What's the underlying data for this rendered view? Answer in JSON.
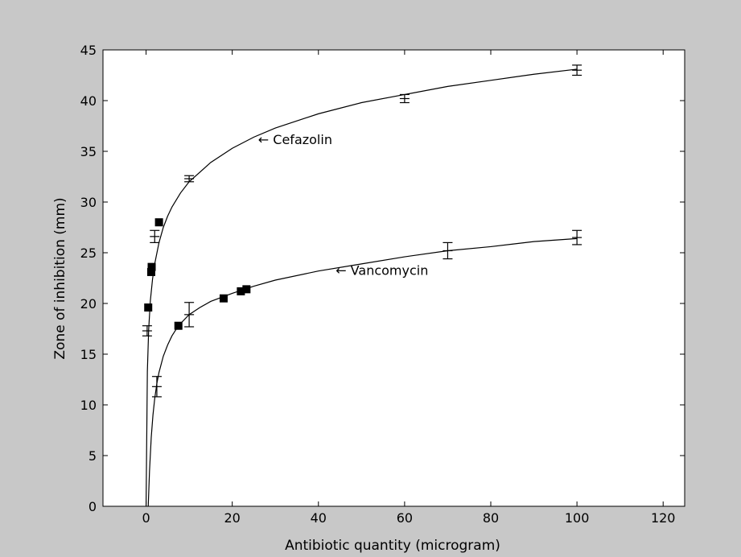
{
  "chart_data": {
    "type": "scatter",
    "title": "",
    "xlabel": "Antibiotic quantity (microgram)",
    "ylabel": "Zone of inhibition (mm)",
    "xlim": [
      -10,
      125
    ],
    "ylim": [
      0,
      45
    ],
    "xticks": [
      "0",
      "20",
      "40",
      "60",
      "80",
      "100",
      "120"
    ],
    "yticks": [
      "0",
      "5",
      "10",
      "15",
      "20",
      "25",
      "30",
      "35",
      "40",
      "45"
    ],
    "grid": false,
    "legend": "none",
    "series": [
      {
        "name": "Cefazolin",
        "annotation": "← Cefazolin",
        "fit_curve": [
          [
            0,
            0
          ],
          [
            0.3,
            13.3
          ],
          [
            0.6,
            17.4
          ],
          [
            1,
            20.3
          ],
          [
            1.5,
            22.4
          ],
          [
            2,
            23.9
          ],
          [
            3,
            26.0
          ],
          [
            4,
            27.5
          ],
          [
            5,
            28.6
          ],
          [
            6,
            29.5
          ],
          [
            8,
            30.9
          ],
          [
            10,
            32.0
          ],
          [
            15,
            33.9
          ],
          [
            20,
            35.3
          ],
          [
            25,
            36.4
          ],
          [
            30,
            37.3
          ],
          [
            40,
            38.7
          ],
          [
            50,
            39.8
          ],
          [
            60,
            40.6
          ],
          [
            70,
            41.4
          ],
          [
            80,
            42.0
          ],
          [
            90,
            42.6
          ],
          [
            100,
            43.1
          ]
        ],
        "errorbar_points": [
          {
            "x": 0.25,
            "y": 17.3,
            "err": 0.5
          },
          {
            "x": 2,
            "y": 26.6,
            "err": 0.6
          },
          {
            "x": 10,
            "y": 32.3,
            "err": 0.3
          },
          {
            "x": 60,
            "y": 40.2,
            "err": 0.4
          },
          {
            "x": 100,
            "y": 43.0,
            "err": 0.5
          }
        ],
        "measured_points": [
          {
            "x": 0.5,
            "y": 19.6
          },
          {
            "x": 1.2,
            "y": 23.1
          },
          {
            "x": 1.3,
            "y": 23.6
          },
          {
            "x": 3,
            "y": 28.0
          }
        ]
      },
      {
        "name": "Vancomycin",
        "annotation": "← Vancomycin",
        "fit_curve": [
          [
            0.5,
            0
          ],
          [
            0.8,
            3.5
          ],
          [
            1.2,
            6.8
          ],
          [
            1.6,
            9.0
          ],
          [
            2,
            10.6
          ],
          [
            2.5,
            12.1
          ],
          [
            3,
            13.2
          ],
          [
            4,
            14.8
          ],
          [
            5,
            15.9
          ],
          [
            6,
            16.8
          ],
          [
            7.5,
            17.8
          ],
          [
            10,
            18.9
          ],
          [
            12.5,
            19.6
          ],
          [
            15,
            20.2
          ],
          [
            17.5,
            20.6
          ],
          [
            20,
            21.0
          ],
          [
            25,
            21.7
          ],
          [
            30,
            22.3
          ],
          [
            40,
            23.2
          ],
          [
            50,
            23.9
          ],
          [
            60,
            24.6
          ],
          [
            70,
            25.2
          ],
          [
            80,
            25.6
          ],
          [
            90,
            26.1
          ],
          [
            100,
            26.4
          ]
        ],
        "errorbar_points": [
          {
            "x": 2.5,
            "y": 11.8,
            "err": 1.0
          },
          {
            "x": 10,
            "y": 18.9,
            "err": 1.2
          },
          {
            "x": 70,
            "y": 25.2,
            "err": 0.8
          },
          {
            "x": 100,
            "y": 26.5,
            "err": 0.7
          }
        ],
        "measured_points": [
          {
            "x": 7.5,
            "y": 17.8
          },
          {
            "x": 18,
            "y": 20.5
          },
          {
            "x": 22,
            "y": 21.2
          },
          {
            "x": 23.3,
            "y": 21.4
          }
        ]
      }
    ]
  }
}
